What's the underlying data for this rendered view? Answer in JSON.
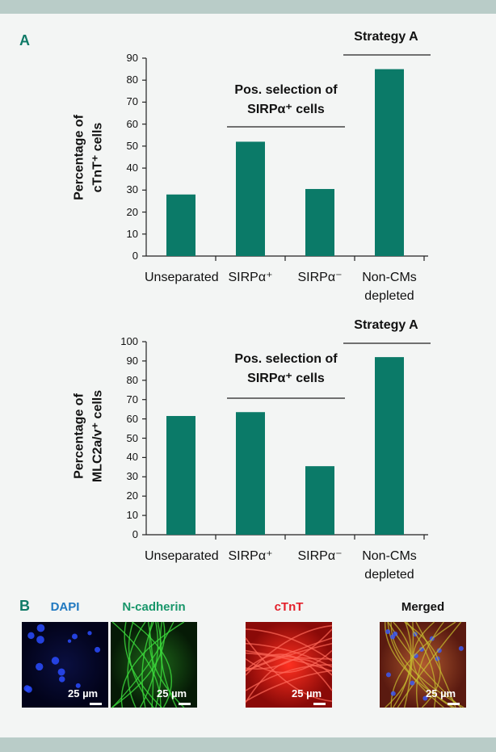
{
  "panel_a_label": "A",
  "chart_data": [
    {
      "type": "bar",
      "ylabel": "Percentage of cTnT⁺ cells",
      "categories": [
        "Unseparated",
        "SIRPα⁺",
        "SIRPα⁻",
        "Non-CMs depleted"
      ],
      "values": [
        28,
        52,
        30.5,
        85
      ],
      "color": "#0b7a68",
      "ylim": [
        0,
        90
      ],
      "yticks": [
        0,
        10,
        20,
        30,
        40,
        50,
        60,
        70,
        80,
        90
      ],
      "annotations": [
        "Pos. selection of SIRPα⁺ cells",
        "Strategy A"
      ]
    },
    {
      "type": "bar",
      "ylabel": "Percentage of MLC2a/v⁺ cells",
      "categories": [
        "Unseparated",
        "SIRPα⁺",
        "SIRPα⁻",
        "Non-CMs depleted"
      ],
      "values": [
        61.5,
        63.5,
        35.5,
        92
      ],
      "color": "#0b7a68",
      "ylim": [
        0,
        100
      ],
      "yticks": [
        0,
        10,
        20,
        30,
        40,
        50,
        60,
        70,
        80,
        90,
        100
      ],
      "annotations": [
        "Pos. selection of SIRPα⁺ cells",
        "Strategy A"
      ]
    }
  ],
  "panel_b": {
    "label": "B",
    "images": [
      {
        "title": "DAPI",
        "color": "#1f78c0",
        "scale_bar": "25 µm"
      },
      {
        "title": "N-cadherin",
        "color": "#18966a",
        "scale_bar": "25 µm"
      },
      {
        "title": "cTnT",
        "color": "#e3202b",
        "scale_bar": "25 µm"
      },
      {
        "title": "Merged",
        "color": "#111111",
        "scale_bar": "25 µm"
      }
    ]
  }
}
